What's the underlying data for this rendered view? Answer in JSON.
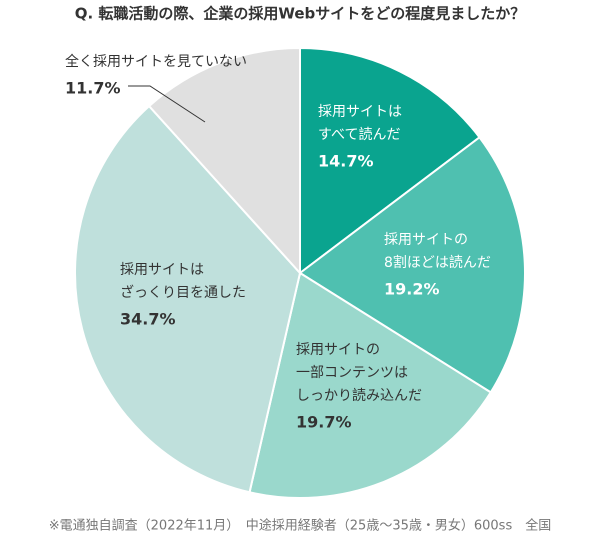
{
  "chart_data": {
    "type": "pie",
    "title": "Q. 転職活動の際、企業の採用Webサイトをどの程度見ましたか？",
    "categories": [
      [
        "採用サイトは",
        "すべて読んだ"
      ],
      [
        "採用サイトの",
        "8割ほどは読んだ"
      ],
      [
        "採用サイトの",
        "一部コンテンツは",
        "しっかり読み込んだ"
      ],
      [
        "採用サイトは",
        "ざっくり目を通した"
      ],
      [
        "全く採用サイトを見ていない"
      ]
    ],
    "values": [
      14.7,
      19.2,
      19.7,
      34.7,
      11.7
    ],
    "value_labels": [
      "14.7%",
      "19.2%",
      "19.7%",
      "34.7%",
      "11.7%"
    ],
    "colors": [
      "#0aa48f",
      "#4fc0b0",
      "#9ad8cc",
      "#bfe0dc",
      "#e0e0e0"
    ],
    "footnote": "※電通独自調査（2022年11月）　中途採用経験者（25歳〜35歳・男女）600ss　全国"
  }
}
